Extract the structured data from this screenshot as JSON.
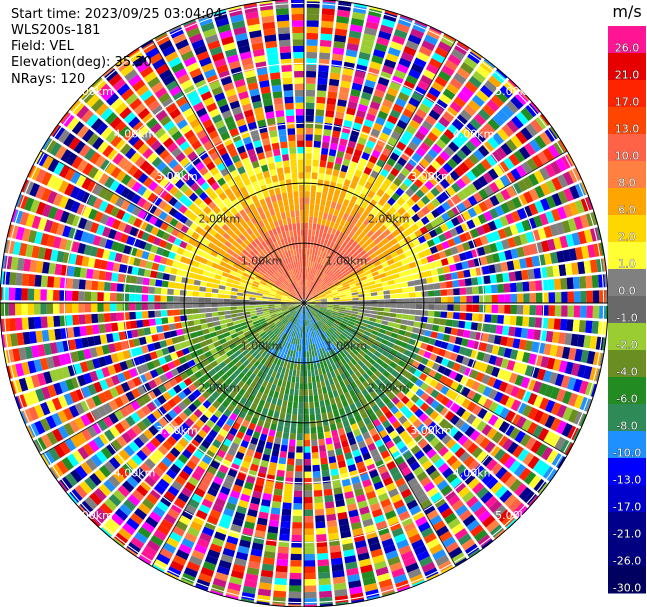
{
  "info": {
    "start_time": "Start time: 2023/09/25 03:04:04",
    "station": "WLS200s-181",
    "field": "Field: VEL",
    "elevation": "Elevation(deg): 35.30",
    "nrays": "NRays: 120"
  },
  "ppi": {
    "rays": 120,
    "range_rings_km": [
      1,
      2,
      3,
      4,
      5
    ],
    "max_range_km": 7.2,
    "ring_labels": [
      "1.00km",
      "2.00km",
      "3.00km",
      "4.00km",
      "5.00km"
    ]
  },
  "colorbar": {
    "unit": "m/s",
    "ticks": [
      "26.0",
      "21.0",
      "17.0",
      "13.0",
      "10.0",
      "8.0",
      "6.0",
      "2.0",
      "1.0",
      "0.0",
      "-1.0",
      "-2.0",
      "-4.0",
      "-6.0",
      "-8.0",
      "-10.0",
      "-13.0",
      "-17.0",
      "-21.0",
      "-26.0",
      "-30.0"
    ],
    "colors": [
      "#ff1493",
      "#e60000",
      "#ff2400",
      "#ff4500",
      "#ff6347",
      "#ff8040",
      "#ffa500",
      "#ffd700",
      "#ffff33",
      "#808080",
      "#696969",
      "#9acd32",
      "#6b8e23",
      "#228b22",
      "#2e8b57",
      "#1e90ff",
      "#0000ff",
      "#0000cd",
      "#00008b",
      "#000080",
      "#000060"
    ]
  }
}
